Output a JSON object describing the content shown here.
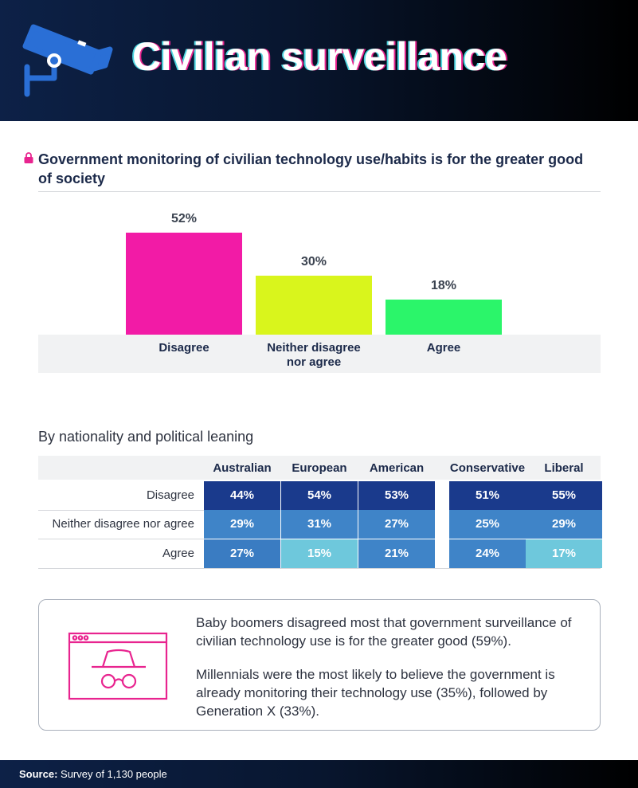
{
  "header": {
    "title": "Civilian surveillance",
    "icon": "security-camera-icon"
  },
  "question": {
    "text": "Government monitoring of civilian technology use/habits is for the greater good of society",
    "icon": "lock-icon"
  },
  "chart_data": [
    {
      "type": "bar",
      "title": "Government monitoring of civilian technology use/habits is for the greater good of society",
      "categories": [
        "Disagree",
        "Neither disagree nor agree",
        "Agree"
      ],
      "category_lines": [
        [
          "Disagree"
        ],
        [
          "Neither disagree",
          "nor agree"
        ],
        [
          "Agree"
        ]
      ],
      "values": [
        52,
        30,
        18
      ],
      "value_labels": [
        "52%",
        "30%",
        "18%"
      ],
      "colors": [
        "#f21ba6",
        "#d9f51c",
        "#2bf56a"
      ],
      "ylim": [
        0,
        52
      ],
      "xlabel": "",
      "ylabel": "",
      "grid": false
    },
    {
      "type": "table",
      "title": "By nationality and political leaning",
      "columns": [
        "Australian",
        "European",
        "American",
        "Conservative",
        "Liberal"
      ],
      "rows": [
        {
          "label": "Disagree",
          "values": [
            "44%",
            "54%",
            "53%",
            "51%",
            "55%"
          ]
        },
        {
          "label": "Neither disagree nor agree",
          "values": [
            "29%",
            "31%",
            "27%",
            "25%",
            "29%"
          ]
        },
        {
          "label": "Agree",
          "values": [
            "27%",
            "15%",
            "21%",
            "24%",
            "17%"
          ]
        }
      ]
    }
  ],
  "table_colors": {
    "disagree": "#1a3a8c",
    "neither": "#3f84c8",
    "agree_strong": "#3a7cc2",
    "agree_light": "#6ec8dc"
  },
  "cell_color_keys": [
    [
      "disagree",
      "disagree",
      "disagree",
      "disagree",
      "disagree"
    ],
    [
      "neither",
      "neither",
      "neither",
      "neither",
      "neither"
    ],
    [
      "agree_strong",
      "agree_light",
      "neither",
      "neither",
      "agree_light"
    ]
  ],
  "note": {
    "icon": "incognito-browser-icon",
    "p1": "Baby boomers disagreed most that government surveillance of civilian technology use is for the greater good (59%).",
    "p2": "Millennials were the most likely to believe the government is already monitoring their technology use (35%), followed by Generation X (33%)."
  },
  "footer": {
    "source_label": "Source:",
    "source_text": " Survey of 1,130 people"
  },
  "colors": {
    "accent_pink": "#e8248f",
    "navy": "#0d2147"
  }
}
